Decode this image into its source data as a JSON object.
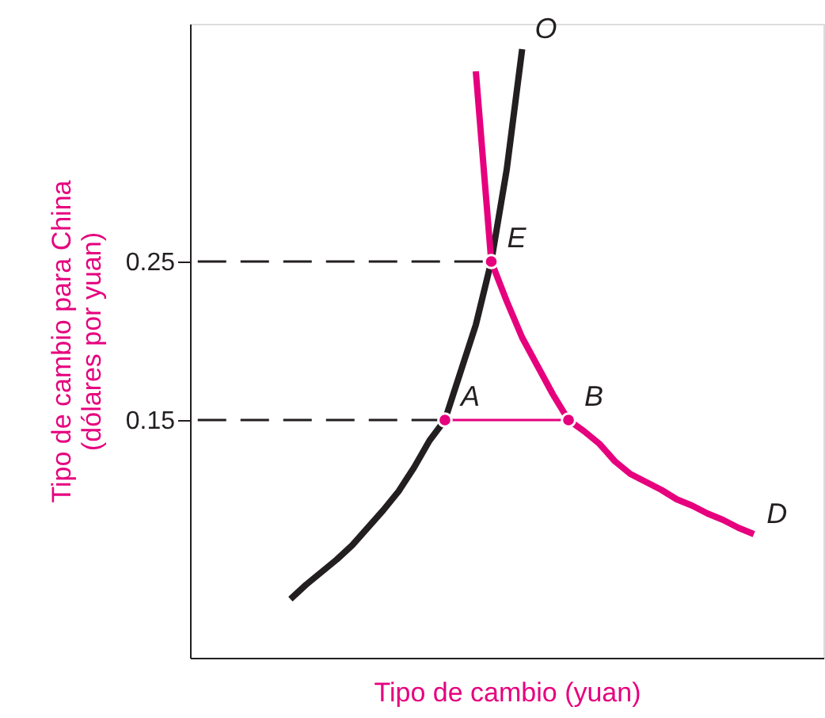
{
  "chart_data": {
    "type": "line",
    "xlabel": "Tipo de cambio (yuan)",
    "ylabel": "Tipo de cambio para China\n(dólares por yuan)",
    "ylim": [
      0,
      0.4
    ],
    "yticks": [
      0.15,
      0.25
    ],
    "tick_labels": "y",
    "grid": false,
    "categories": [
      null,
      null,
      null,
      null,
      null,
      null,
      null,
      null,
      null,
      null,
      null,
      null,
      null,
      null,
      null,
      null,
      null,
      null,
      null,
      null,
      null,
      null,
      null,
      null,
      null,
      null,
      null,
      null,
      null,
      null,
      null,
      null,
      null,
      null,
      null,
      null,
      null,
      null,
      null,
      null,
      null
    ],
    "series": [
      {
        "name": "O",
        "color": "#231f20",
        "line_style": "solid",
        "values": [
          null,
          null,
          null,
          null,
          null,
          null,
          0.037,
          0.046,
          0.054,
          0.062,
          0.071,
          0.082,
          0.093,
          0.105,
          0.12,
          0.137,
          0.15,
          0.18,
          0.21,
          0.25,
          0.308,
          0.384,
          null,
          null,
          null,
          null,
          null,
          null,
          null,
          null,
          null,
          null,
          null,
          null,
          null,
          null,
          null,
          null,
          null,
          null,
          null
        ]
      },
      {
        "name": "D",
        "color": "#e6007e",
        "line_style": "solid",
        "values": [
          null,
          null,
          null,
          null,
          null,
          null,
          null,
          null,
          null,
          null,
          null,
          null,
          null,
          null,
          null,
          null,
          null,
          null,
          0.37,
          0.25,
          0.225,
          0.202,
          0.184,
          0.166,
          0.15,
          0.143,
          0.135,
          0.124,
          0.116,
          0.111,
          0.106,
          0.1,
          0.096,
          0.091,
          0.087,
          0.082,
          0.078,
          null,
          null,
          null,
          null
        ]
      },
      {
        "color": "#231f20",
        "line_style": "dashed",
        "values": [
          0.25,
          0.25,
          0.25,
          0.25,
          0.25,
          0.25,
          0.25,
          0.25,
          0.25,
          0.25,
          0.25,
          0.25,
          0.25,
          0.25,
          0.25,
          0.25,
          0.25,
          0.25,
          0.25,
          0.25,
          null,
          null,
          null,
          null,
          null,
          null,
          null,
          null,
          null,
          null,
          null,
          null,
          null,
          null,
          null,
          null,
          null,
          null,
          null,
          null,
          null
        ]
      },
      {
        "color": "#231f20",
        "line_style": "dashed",
        "values": [
          0.15,
          0.15,
          0.15,
          0.15,
          0.15,
          0.15,
          0.15,
          0.15,
          0.15,
          0.15,
          0.15,
          0.15,
          0.15,
          0.15,
          0.15,
          0.15,
          0.15,
          null,
          null,
          null,
          null,
          null,
          null,
          null,
          null,
          null,
          null,
          null,
          null,
          null,
          null,
          null,
          null,
          null,
          null,
          null,
          null,
          null,
          null,
          null,
          null
        ]
      },
      {
        "color": "#e6007e",
        "line_style": "solid",
        "values": [
          null,
          null,
          null,
          null,
          null,
          null,
          null,
          null,
          null,
          null,
          null,
          null,
          null,
          null,
          null,
          null,
          0.15,
          0.15,
          0.15,
          0.15,
          0.15,
          0.15,
          0.15,
          0.15,
          0.15,
          null,
          null,
          null,
          null,
          null,
          null,
          null,
          null,
          null,
          null,
          null,
          null,
          null,
          null,
          null,
          null
        ]
      },
      {
        "color": "#e6007e",
        "type": "scatter",
        "marker": "circle",
        "values": [
          null,
          null,
          null,
          null,
          null,
          null,
          null,
          null,
          null,
          null,
          null,
          null,
          null,
          null,
          null,
          null,
          0.15,
          null,
          null,
          0.25,
          null,
          null,
          null,
          null,
          0.15,
          null,
          null,
          null,
          null,
          null,
          null,
          null,
          null,
          null,
          null,
          null,
          null,
          null,
          null,
          null,
          null
        ],
        "value_labels": [
          null,
          null,
          null,
          null,
          null,
          null,
          null,
          null,
          null,
          null,
          null,
          null,
          null,
          null,
          null,
          null,
          "A",
          null,
          null,
          "E",
          null,
          null,
          null,
          null,
          "B",
          null,
          null,
          null,
          null,
          null,
          null,
          null,
          null,
          null,
          null,
          null,
          null,
          null,
          null,
          null,
          null
        ]
      }
    ]
  }
}
